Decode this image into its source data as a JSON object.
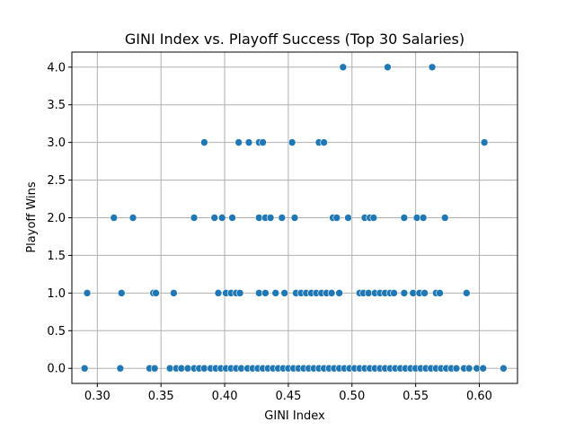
{
  "chart_data": {
    "type": "scatter",
    "title": "GINI Index vs. Playoff Success (Top 30 Salaries)",
    "xlabel": "GINI Index",
    "ylabel": "Playoff Wins",
    "xlim": [
      0.28,
      0.63
    ],
    "ylim": [
      -0.2,
      4.2
    ],
    "x_ticks": [
      0.3,
      0.35,
      0.4,
      0.45,
      0.5,
      0.55,
      0.6
    ],
    "x_tick_labels": [
      "0.30",
      "0.35",
      "0.40",
      "0.45",
      "0.50",
      "0.55",
      "0.60"
    ],
    "y_ticks": [
      0.0,
      0.5,
      1.0,
      1.5,
      2.0,
      2.5,
      3.0,
      3.5,
      4.0
    ],
    "y_tick_labels": [
      "0.0",
      "0.5",
      "1.0",
      "1.5",
      "2.0",
      "2.5",
      "3.0",
      "3.5",
      "4.0"
    ],
    "grid": true,
    "marker_color": "#1f77b4",
    "points": [
      {
        "x": 0.493,
        "y": 4
      },
      {
        "x": 0.528,
        "y": 4
      },
      {
        "x": 0.563,
        "y": 4
      },
      {
        "x": 0.384,
        "y": 3
      },
      {
        "x": 0.411,
        "y": 3
      },
      {
        "x": 0.419,
        "y": 3
      },
      {
        "x": 0.427,
        "y": 3
      },
      {
        "x": 0.43,
        "y": 3
      },
      {
        "x": 0.453,
        "y": 3
      },
      {
        "x": 0.474,
        "y": 3
      },
      {
        "x": 0.478,
        "y": 3
      },
      {
        "x": 0.604,
        "y": 3
      },
      {
        "x": 0.313,
        "y": 2
      },
      {
        "x": 0.328,
        "y": 2
      },
      {
        "x": 0.376,
        "y": 2
      },
      {
        "x": 0.392,
        "y": 2
      },
      {
        "x": 0.398,
        "y": 2
      },
      {
        "x": 0.406,
        "y": 2
      },
      {
        "x": 0.427,
        "y": 2
      },
      {
        "x": 0.432,
        "y": 2
      },
      {
        "x": 0.436,
        "y": 2
      },
      {
        "x": 0.445,
        "y": 2
      },
      {
        "x": 0.455,
        "y": 2
      },
      {
        "x": 0.485,
        "y": 2
      },
      {
        "x": 0.488,
        "y": 2
      },
      {
        "x": 0.497,
        "y": 2
      },
      {
        "x": 0.51,
        "y": 2
      },
      {
        "x": 0.514,
        "y": 2
      },
      {
        "x": 0.517,
        "y": 2
      },
      {
        "x": 0.541,
        "y": 2
      },
      {
        "x": 0.551,
        "y": 2
      },
      {
        "x": 0.556,
        "y": 2
      },
      {
        "x": 0.573,
        "y": 2
      },
      {
        "x": 0.292,
        "y": 1
      },
      {
        "x": 0.319,
        "y": 1
      },
      {
        "x": 0.344,
        "y": 1
      },
      {
        "x": 0.346,
        "y": 1
      },
      {
        "x": 0.36,
        "y": 1
      },
      {
        "x": 0.395,
        "y": 1
      },
      {
        "x": 0.401,
        "y": 1
      },
      {
        "x": 0.405,
        "y": 1
      },
      {
        "x": 0.409,
        "y": 1
      },
      {
        "x": 0.412,
        "y": 1
      },
      {
        "x": 0.427,
        "y": 1
      },
      {
        "x": 0.432,
        "y": 1
      },
      {
        "x": 0.44,
        "y": 1
      },
      {
        "x": 0.447,
        "y": 1
      },
      {
        "x": 0.456,
        "y": 1
      },
      {
        "x": 0.46,
        "y": 1
      },
      {
        "x": 0.464,
        "y": 1
      },
      {
        "x": 0.468,
        "y": 1
      },
      {
        "x": 0.472,
        "y": 1
      },
      {
        "x": 0.476,
        "y": 1
      },
      {
        "x": 0.48,
        "y": 1
      },
      {
        "x": 0.484,
        "y": 1
      },
      {
        "x": 0.49,
        "y": 1
      },
      {
        "x": 0.506,
        "y": 1
      },
      {
        "x": 0.509,
        "y": 1
      },
      {
        "x": 0.513,
        "y": 1
      },
      {
        "x": 0.518,
        "y": 1
      },
      {
        "x": 0.522,
        "y": 1
      },
      {
        "x": 0.526,
        "y": 1
      },
      {
        "x": 0.53,
        "y": 1
      },
      {
        "x": 0.533,
        "y": 1
      },
      {
        "x": 0.541,
        "y": 1
      },
      {
        "x": 0.548,
        "y": 1
      },
      {
        "x": 0.553,
        "y": 1
      },
      {
        "x": 0.557,
        "y": 1
      },
      {
        "x": 0.566,
        "y": 1
      },
      {
        "x": 0.569,
        "y": 1
      },
      {
        "x": 0.59,
        "y": 1
      },
      {
        "x": 0.29,
        "y": 0
      },
      {
        "x": 0.318,
        "y": 0
      },
      {
        "x": 0.341,
        "y": 0
      },
      {
        "x": 0.345,
        "y": 0
      },
      {
        "x": 0.357,
        "y": 0
      },
      {
        "x": 0.362,
        "y": 0
      },
      {
        "x": 0.366,
        "y": 0
      },
      {
        "x": 0.371,
        "y": 0
      },
      {
        "x": 0.376,
        "y": 0
      },
      {
        "x": 0.38,
        "y": 0
      },
      {
        "x": 0.384,
        "y": 0
      },
      {
        "x": 0.389,
        "y": 0
      },
      {
        "x": 0.393,
        "y": 0
      },
      {
        "x": 0.397,
        "y": 0
      },
      {
        "x": 0.401,
        "y": 0
      },
      {
        "x": 0.405,
        "y": 0
      },
      {
        "x": 0.409,
        "y": 0
      },
      {
        "x": 0.413,
        "y": 0
      },
      {
        "x": 0.418,
        "y": 0
      },
      {
        "x": 0.422,
        "y": 0
      },
      {
        "x": 0.426,
        "y": 0
      },
      {
        "x": 0.43,
        "y": 0
      },
      {
        "x": 0.434,
        "y": 0
      },
      {
        "x": 0.438,
        "y": 0
      },
      {
        "x": 0.442,
        "y": 0
      },
      {
        "x": 0.446,
        "y": 0
      },
      {
        "x": 0.45,
        "y": 0
      },
      {
        "x": 0.454,
        "y": 0
      },
      {
        "x": 0.458,
        "y": 0
      },
      {
        "x": 0.462,
        "y": 0
      },
      {
        "x": 0.466,
        "y": 0
      },
      {
        "x": 0.47,
        "y": 0
      },
      {
        "x": 0.474,
        "y": 0
      },
      {
        "x": 0.478,
        "y": 0
      },
      {
        "x": 0.482,
        "y": 0
      },
      {
        "x": 0.486,
        "y": 0
      },
      {
        "x": 0.49,
        "y": 0
      },
      {
        "x": 0.494,
        "y": 0
      },
      {
        "x": 0.498,
        "y": 0
      },
      {
        "x": 0.502,
        "y": 0
      },
      {
        "x": 0.506,
        "y": 0
      },
      {
        "x": 0.51,
        "y": 0
      },
      {
        "x": 0.514,
        "y": 0
      },
      {
        "x": 0.518,
        "y": 0
      },
      {
        "x": 0.522,
        "y": 0
      },
      {
        "x": 0.526,
        "y": 0
      },
      {
        "x": 0.53,
        "y": 0
      },
      {
        "x": 0.534,
        "y": 0
      },
      {
        "x": 0.538,
        "y": 0
      },
      {
        "x": 0.542,
        "y": 0
      },
      {
        "x": 0.546,
        "y": 0
      },
      {
        "x": 0.55,
        "y": 0
      },
      {
        "x": 0.554,
        "y": 0
      },
      {
        "x": 0.558,
        "y": 0
      },
      {
        "x": 0.562,
        "y": 0
      },
      {
        "x": 0.566,
        "y": 0
      },
      {
        "x": 0.57,
        "y": 0
      },
      {
        "x": 0.574,
        "y": 0
      },
      {
        "x": 0.578,
        "y": 0
      },
      {
        "x": 0.582,
        "y": 0
      },
      {
        "x": 0.588,
        "y": 0
      },
      {
        "x": 0.592,
        "y": 0
      },
      {
        "x": 0.598,
        "y": 0
      },
      {
        "x": 0.603,
        "y": 0
      },
      {
        "x": 0.619,
        "y": 0
      }
    ]
  }
}
